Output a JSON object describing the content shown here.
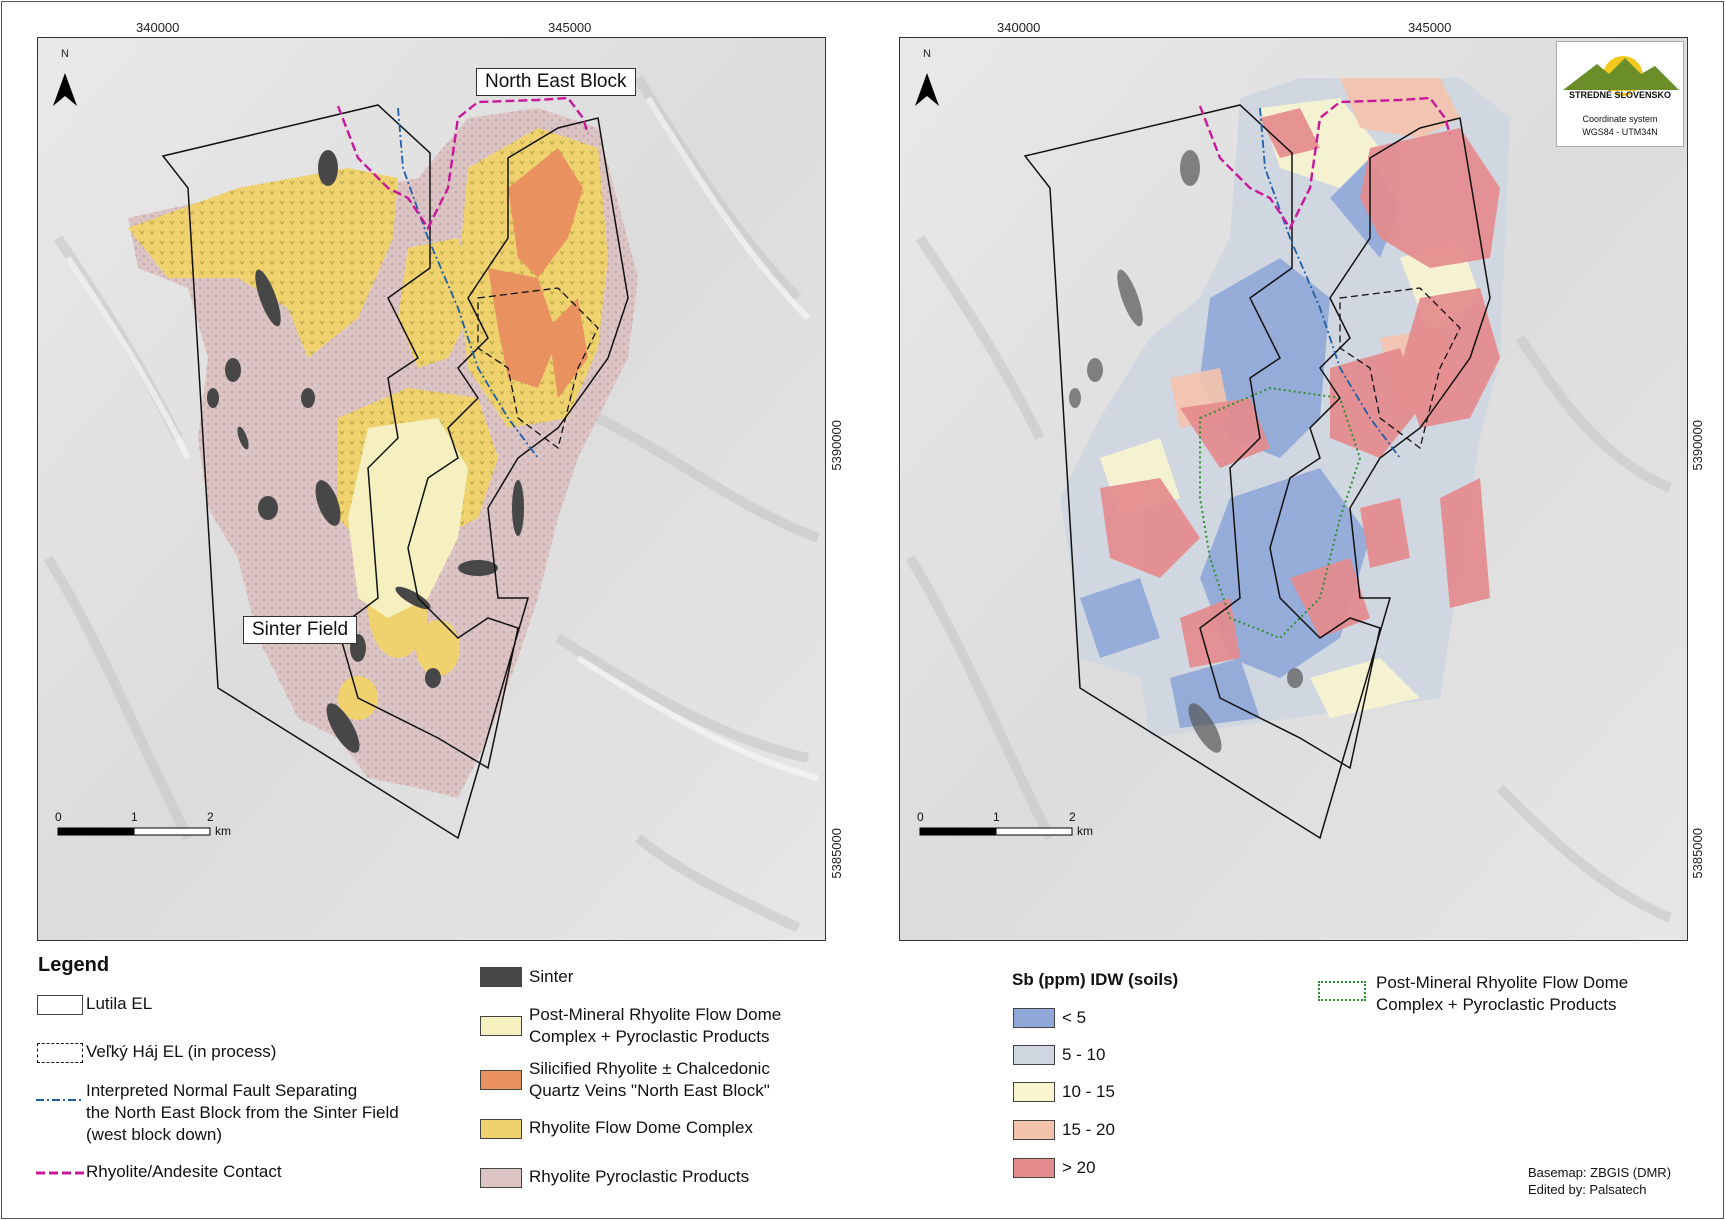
{
  "left_map": {
    "x_ticks": [
      "340000",
      "345000"
    ],
    "y_ticks": [
      "5390000",
      "5385000"
    ],
    "labels": {
      "north_east_block": "North East Block",
      "sinter_field": "Sinter Field"
    },
    "scale": {
      "values": [
        "0",
        "1",
        "2"
      ],
      "unit": "km"
    },
    "north": "N"
  },
  "right_map": {
    "x_ticks": [
      "340000",
      "345000"
    ],
    "y_ticks": [
      "5390000",
      "5385000"
    ],
    "scale": {
      "values": [
        "0",
        "1",
        "2"
      ],
      "unit": "km"
    },
    "north": "N",
    "logo": {
      "name": "STREDNÉ SLOVENSKO",
      "coord_line1": "Coordinate system",
      "coord_line2": "WGS84 - UTM34N"
    }
  },
  "legend": {
    "title": "Legend",
    "lines": [
      {
        "label": "Lutila EL",
        "style": "solid-box"
      },
      {
        "label": "Veľký Háj EL (in process)",
        "style": "dashed-box"
      },
      {
        "label_lines": [
          "Interpreted Normal Fault Separating",
          "the North East Block from the Sinter Field",
          "(west block down)"
        ],
        "style": "dash-dot",
        "color": "#1f5fa8"
      },
      {
        "label": "Rhyolite/Andesite Contact",
        "style": "dashed",
        "color": "#c8189a"
      }
    ],
    "units": [
      {
        "label_lines": [
          "Sinter"
        ],
        "color": "#474747"
      },
      {
        "label_lines": [
          "Post-Mineral Rhyolite Flow Dome",
          "Complex + Pyroclastic Products"
        ],
        "color": "#f6efbf"
      },
      {
        "label_lines": [
          "Silicified Rhyolite ± Chalcedonic",
          "Quartz Veins \"North East Block\""
        ],
        "color": "#e9925f"
      },
      {
        "label_lines": [
          "Rhyolite Flow Dome Complex"
        ],
        "color": "#efd26e"
      },
      {
        "label_lines": [
          "Rhyolite Pyroclastic Products"
        ],
        "color": "#dcc3c4"
      }
    ]
  },
  "sb_legend": {
    "title": "Sb (ppm) IDW (soils)",
    "classes": [
      {
        "label": "< 5",
        "color": "#8fa8d8"
      },
      {
        "label": "5 - 10",
        "color": "#cfd6df"
      },
      {
        "label": "10 - 15",
        "color": "#f8f5cf"
      },
      {
        "label": "15 - 20",
        "color": "#f4c3ac"
      },
      {
        "label": "> 20",
        "color": "#e58b8e"
      }
    ],
    "overlay": {
      "label_lines": [
        "Post-Mineral Rhyolite Flow Dome",
        "Complex + Pyroclastic Products"
      ],
      "color": "#2f8f2f"
    }
  },
  "credits": {
    "line1": "Basemap: ZBGIS (DMR)",
    "line2": "Edited by: Palsatech"
  }
}
